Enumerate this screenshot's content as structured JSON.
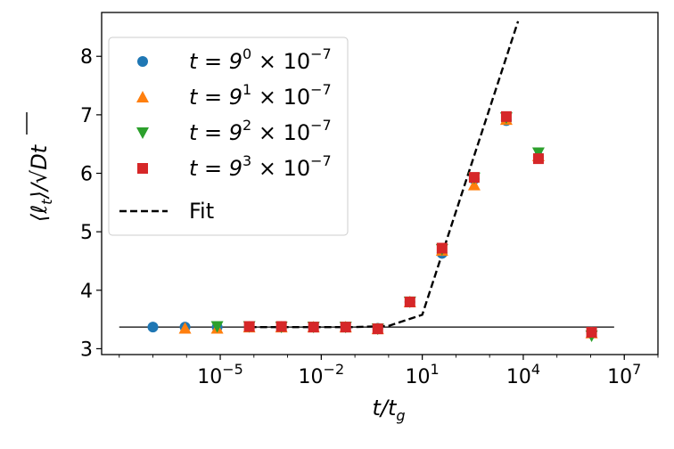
{
  "chart_data": {
    "type": "scatter",
    "xscale": "log",
    "xlim": [
      3e-09,
      100000000.0
    ],
    "ylim": [
      2.9,
      8.75
    ],
    "xticks": [
      {
        "value": 1e-05,
        "base": "10",
        "exp": "−5"
      },
      {
        "value": 0.01,
        "base": "10",
        "exp": "−2"
      },
      {
        "value": 10.0,
        "base": "10",
        "exp": "1"
      },
      {
        "value": 10000.0,
        "base": "10",
        "exp": "4"
      },
      {
        "value": 10000000.0,
        "base": "10",
        "exp": "7"
      }
    ],
    "yticks": [
      3,
      4,
      5,
      6,
      7,
      8
    ],
    "xlabel": "t/t_g",
    "ylabel": "⟨ℓ_t⟩/√Dt",
    "legend_position": "upper-left",
    "series": [
      {
        "name_base": "t = 9",
        "name_exp": "0",
        "name_suffix": " × 10",
        "name_suffix_exp": "−7",
        "marker": "circle",
        "color": "#1f77b4",
        "x": [
          1e-07,
          9e-07,
          8.1e-06,
          7.29e-05,
          0.000656,
          0.0059,
          0.0531,
          0.478,
          4.3,
          38.7,
          349,
          3140,
          28200,
          1070000.0
        ],
        "y": [
          3.37,
          3.37,
          3.37,
          3.37,
          3.37,
          3.37,
          3.37,
          3.35,
          3.8,
          4.63,
          5.9,
          6.9,
          6.28,
          3.28
        ]
      },
      {
        "name_base": "t = 9",
        "name_exp": "1",
        "name_suffix": " × 10",
        "name_suffix_exp": "−7",
        "marker": "triangle-up",
        "color": "#ff7f0e",
        "x": [
          9e-07,
          8.1e-06,
          7.29e-05,
          0.000656,
          0.0059,
          0.0531,
          0.478,
          4.3,
          38.7,
          349,
          3140,
          28200,
          1070000.0
        ],
        "y": [
          3.35,
          3.35,
          3.37,
          3.37,
          3.37,
          3.37,
          3.34,
          3.8,
          4.68,
          5.8,
          6.92,
          6.3,
          3.27
        ]
      },
      {
        "name_base": "t = 9",
        "name_exp": "2",
        "name_suffix": " × 10",
        "name_suffix_exp": "−7",
        "marker": "triangle-down",
        "color": "#2ca02c",
        "x": [
          8.1e-06,
          7.29e-05,
          0.000656,
          0.0059,
          0.0531,
          0.478,
          4.3,
          38.7,
          349,
          3140,
          28200,
          1070000.0
        ],
        "y": [
          3.38,
          3.38,
          3.37,
          3.37,
          3.37,
          3.34,
          3.8,
          4.7,
          5.92,
          6.95,
          6.35,
          3.22
        ]
      },
      {
        "name_base": "t = 9",
        "name_exp": "3",
        "name_suffix": " × 10",
        "name_suffix_exp": "−7",
        "marker": "square",
        "color": "#d62728",
        "x": [
          7.29e-05,
          0.000656,
          0.0059,
          0.0531,
          0.478,
          4.3,
          38.7,
          349,
          3140,
          28200,
          1070000.0
        ],
        "y": [
          3.38,
          3.38,
          3.37,
          3.37,
          3.34,
          3.8,
          4.72,
          5.93,
          6.97,
          6.25,
          3.28
        ]
      }
    ],
    "fit": {
      "name": "Fit",
      "style": "dashed",
      "color": "#000000",
      "x": [
        7.29e-05,
        0.001,
        0.01,
        0.1,
        1,
        10,
        7000
      ],
      "y": [
        3.37,
        3.37,
        3.37,
        3.37,
        3.39,
        3.58,
        8.6
      ]
    },
    "reference_line": {
      "y": 3.37,
      "x_range": [
        1e-08,
        5000000.0
      ],
      "color": "#000000"
    }
  }
}
